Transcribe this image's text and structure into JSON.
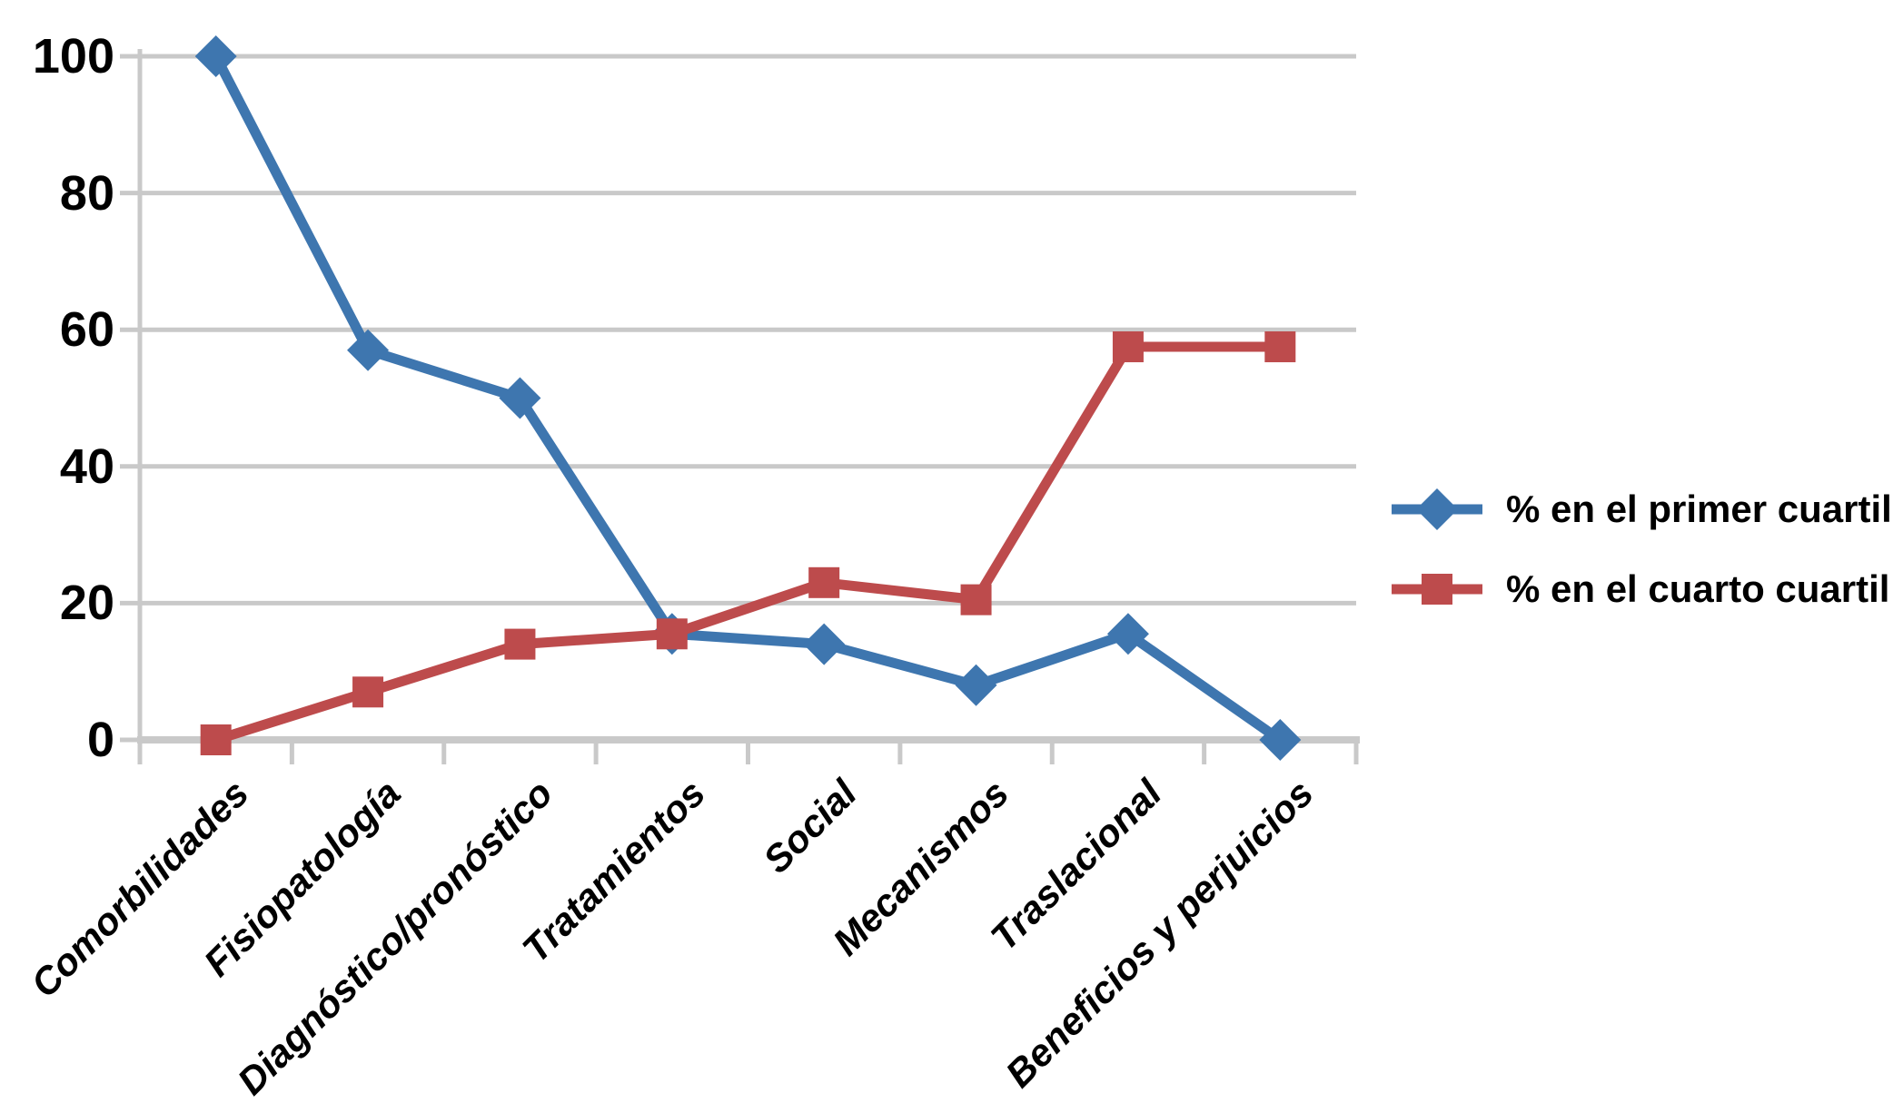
{
  "chart_data": {
    "type": "line",
    "title": "",
    "xlabel": "",
    "ylabel": "",
    "categories": [
      "Comorbilidades",
      "Fisiopatología",
      "Diagnóstico/pronóstico",
      "Tratamientos",
      "Social",
      "Mecanismos",
      "Traslacional",
      "Beneficios y perjuicios"
    ],
    "series": [
      {
        "name": "% en el primer cuartil",
        "marker": "diamond",
        "color": "#3E76AF",
        "values": [
          100,
          57,
          50,
          15.5,
          14,
          8,
          15.5,
          0
        ]
      },
      {
        "name": "% en el cuarto cuartil",
        "marker": "square",
        "color": "#BD4B4C",
        "values": [
          0,
          7,
          14,
          15.5,
          23,
          20.5,
          57.5,
          57.5
        ]
      }
    ],
    "ylim": [
      0,
      100
    ],
    "yticks": [
      0,
      20,
      40,
      60,
      80,
      100
    ],
    "ytick_labels": [
      "0",
      "20",
      "40",
      "60",
      "80",
      "100"
    ],
    "grid": true,
    "gridline_color": "#C9C9C9",
    "axis_color": "#C9C9C9",
    "text_color": "#000000",
    "background": "#FFFFFF",
    "legend_position": "center-right"
  }
}
